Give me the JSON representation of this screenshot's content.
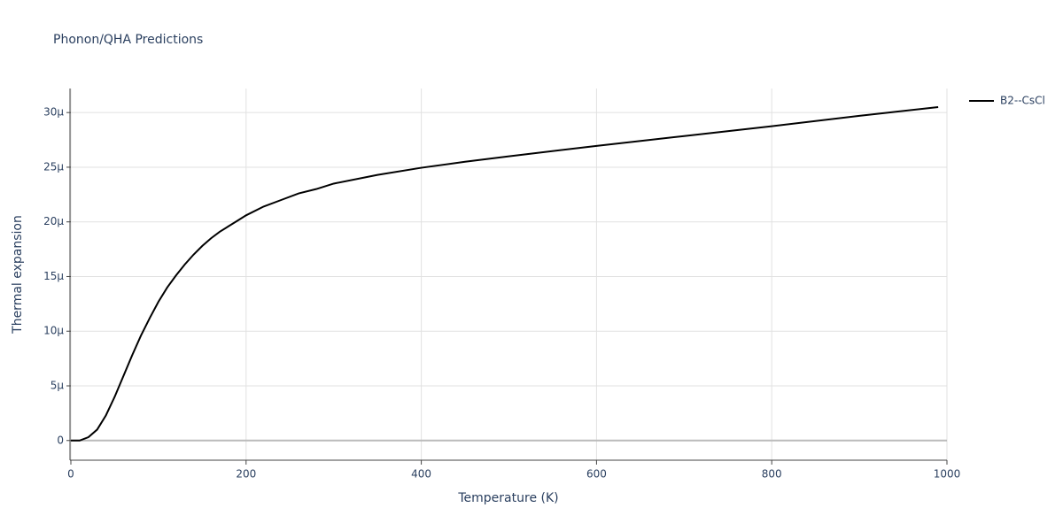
{
  "chart_data": {
    "type": "line",
    "title": "Phonon/QHA Predictions",
    "x_label": "Temperature (K)",
    "y_label": "Thermal expansion",
    "x": [
      0,
      10,
      20,
      30,
      40,
      50,
      60,
      70,
      80,
      90,
      100,
      110,
      120,
      130,
      140,
      150,
      160,
      170,
      180,
      190,
      200,
      220,
      240,
      260,
      280,
      300,
      350,
      400,
      450,
      500,
      600,
      700,
      800,
      900,
      990
    ],
    "series": [
      {
        "name": "B2--CsCl",
        "color": "#000000",
        "values": [
          0,
          0,
          3e-07,
          1e-06,
          2.3e-06,
          4e-06,
          5.9e-06,
          7.8e-06,
          9.6e-06,
          1.12e-05,
          1.27e-05,
          1.4e-05,
          1.51e-05,
          1.61e-05,
          1.7e-05,
          1.78e-05,
          1.85e-05,
          1.91e-05,
          1.96e-05,
          2.01e-05,
          2.06e-05,
          2.14e-05,
          2.2e-05,
          2.26e-05,
          2.3e-05,
          2.35e-05,
          2.43e-05,
          2.495e-05,
          2.55e-05,
          2.6e-05,
          2.695e-05,
          2.785e-05,
          2.875e-05,
          2.97e-05,
          3.05e-05
        ]
      }
    ],
    "xlim": [
      0,
      1000
    ],
    "xticks": [
      0,
      200,
      400,
      600,
      800,
      1000
    ],
    "ylim": [
      -1.8e-06,
      3.22e-05
    ],
    "yticks": [
      0,
      {
        "value": 5e-06,
        "label": "5μ"
      },
      {
        "value": 1e-05,
        "label": "10μ"
      },
      {
        "value": 1.5e-05,
        "label": "15μ"
      },
      {
        "value": 2e-05,
        "label": "20μ"
      },
      {
        "value": 2.5e-05,
        "label": "25μ"
      },
      {
        "value": 3e-05,
        "label": "30μ"
      }
    ],
    "grid": true,
    "legend": "right"
  }
}
